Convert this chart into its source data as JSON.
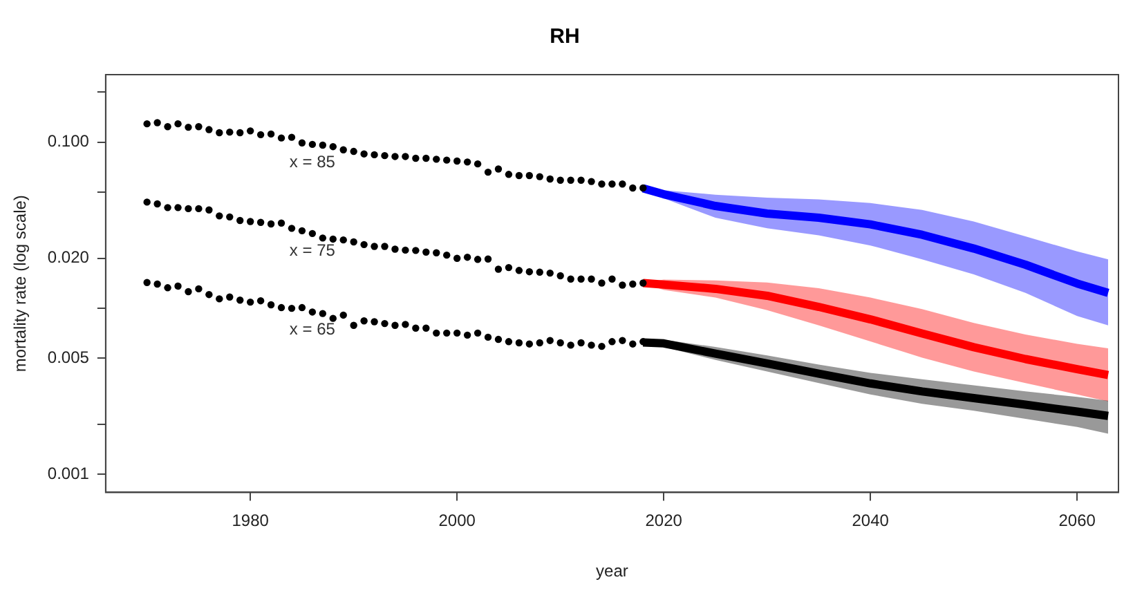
{
  "chart_data": {
    "type": "line",
    "title": "RH",
    "xlabel": "year",
    "ylabel": "mortality rate (log scale)",
    "log": "y",
    "grid": false,
    "legend": false,
    "xlim": [
      1966,
      2064
    ],
    "xticks": [
      1980,
      2000,
      2020,
      2040,
      2060
    ],
    "ylim": [
      0.00078,
      0.255
    ],
    "yticks": [
      {
        "value": 0.001,
        "label": "0.001"
      },
      {
        "value": 0.002,
        "label": null
      },
      {
        "value": 0.005,
        "label": "0.005"
      },
      {
        "value": 0.01,
        "label": null
      },
      {
        "value": 0.02,
        "label": "0.020"
      },
      {
        "value": 0.05,
        "label": null
      },
      {
        "value": 0.1,
        "label": "0.100"
      },
      {
        "value": 0.2,
        "label": null
      }
    ],
    "series": [
      {
        "type": "scatter",
        "name": "x = 85",
        "marker": "circle",
        "color": "#000000",
        "x": [
          1970,
          1971,
          1972,
          1973,
          1974,
          1975,
          1976,
          1977,
          1978,
          1979,
          1980,
          1981,
          1982,
          1983,
          1984,
          1985,
          1986,
          1987,
          1988,
          1989,
          1990,
          1991,
          1992,
          1993,
          1994,
          1995,
          1996,
          1997,
          1998,
          1999,
          2000,
          2001,
          2002,
          2003,
          2004,
          2005,
          2006,
          2007,
          2008,
          2009,
          2010,
          2011,
          2012,
          2013,
          2014,
          2015,
          2016,
          2017,
          2018
        ],
        "values": [
          0.129,
          0.131,
          0.124,
          0.129,
          0.123,
          0.124,
          0.119,
          0.114,
          0.115,
          0.114,
          0.117,
          0.111,
          0.112,
          0.106,
          0.107,
          0.099,
          0.097,
          0.096,
          0.094,
          0.09,
          0.088,
          0.085,
          0.084,
          0.083,
          0.082,
          0.082,
          0.08,
          0.08,
          0.079,
          0.078,
          0.077,
          0.076,
          0.074,
          0.066,
          0.069,
          0.064,
          0.063,
          0.063,
          0.062,
          0.06,
          0.059,
          0.059,
          0.059,
          0.058,
          0.056,
          0.056,
          0.056,
          0.053,
          0.053
        ]
      },
      {
        "type": "scatter",
        "name": "x = 75",
        "marker": "circle",
        "color": "#000000",
        "x": [
          1970,
          1971,
          1972,
          1973,
          1974,
          1975,
          1976,
          1977,
          1978,
          1979,
          1980,
          1981,
          1982,
          1983,
          1984,
          1985,
          1986,
          1987,
          1988,
          1989,
          1990,
          1991,
          1992,
          1993,
          1994,
          1995,
          1996,
          1997,
          1998,
          1999,
          2000,
          2001,
          2002,
          2003,
          2004,
          2005,
          2006,
          2007,
          2008,
          2009,
          2010,
          2011,
          2012,
          2013,
          2014,
          2015,
          2016,
          2017,
          2018
        ],
        "values": [
          0.0436,
          0.0425,
          0.0404,
          0.0404,
          0.0398,
          0.0398,
          0.0391,
          0.036,
          0.0355,
          0.0338,
          0.0333,
          0.0329,
          0.0322,
          0.0326,
          0.0303,
          0.0293,
          0.0282,
          0.0265,
          0.0261,
          0.0258,
          0.0251,
          0.0242,
          0.0236,
          0.0236,
          0.0227,
          0.0224,
          0.0223,
          0.0218,
          0.0216,
          0.0209,
          0.02,
          0.0203,
          0.0197,
          0.0198,
          0.0172,
          0.0176,
          0.0169,
          0.0166,
          0.0165,
          0.0163,
          0.0157,
          0.015,
          0.015,
          0.015,
          0.0142,
          0.015,
          0.0138,
          0.014,
          0.0142
        ]
      },
      {
        "type": "scatter",
        "name": "x = 65",
        "marker": "circle",
        "color": "#000000",
        "x": [
          1970,
          1971,
          1972,
          1973,
          1974,
          1975,
          1976,
          1977,
          1978,
          1979,
          1980,
          1981,
          1982,
          1983,
          1984,
          1985,
          1986,
          1987,
          1988,
          1989,
          1990,
          1991,
          1992,
          1993,
          1994,
          1995,
          1996,
          1997,
          1998,
          1999,
          2000,
          2001,
          2002,
          2003,
          2004,
          2005,
          2006,
          2007,
          2008,
          2009,
          2010,
          2011,
          2012,
          2013,
          2014,
          2015,
          2016,
          2017,
          2018
        ],
        "values": [
          0.0143,
          0.014,
          0.0133,
          0.0136,
          0.0126,
          0.0131,
          0.0121,
          0.0114,
          0.0117,
          0.0112,
          0.0109,
          0.0111,
          0.0105,
          0.0101,
          0.01,
          0.0101,
          0.0095,
          0.0093,
          0.0087,
          0.0091,
          0.0079,
          0.0084,
          0.0083,
          0.0081,
          0.0079,
          0.008,
          0.0076,
          0.0076,
          0.0071,
          0.0071,
          0.0071,
          0.0069,
          0.0071,
          0.0067,
          0.0065,
          0.0063,
          0.0062,
          0.0061,
          0.0062,
          0.0064,
          0.0062,
          0.006,
          0.0062,
          0.006,
          0.0059,
          0.0063,
          0.0064,
          0.0061,
          0.0063
        ]
      },
      {
        "color": "#0000ff",
        "x": [
          2018,
          2020,
          2025,
          2030,
          2035,
          2040,
          2045,
          2050,
          2055,
          2060,
          2063
        ],
        "values": [
          0.0528,
          0.0486,
          0.0413,
          0.0372,
          0.0351,
          0.032,
          0.0277,
          0.0229,
          0.0183,
          0.0141,
          0.0124
        ],
        "lower": [
          0.0528,
          0.0459,
          0.0351,
          0.0303,
          0.0275,
          0.0239,
          0.0197,
          0.016,
          0.0124,
          0.00898,
          0.0079
        ],
        "upper": [
          0.0528,
          0.0514,
          0.0483,
          0.0464,
          0.0453,
          0.043,
          0.0391,
          0.0333,
          0.0271,
          0.022,
          0.0197
        ]
      },
      {
        "color": "#ff0000",
        "x": [
          2018,
          2020,
          2025,
          2030,
          2035,
          2040,
          2045,
          2050,
          2055,
          2060,
          2063
        ],
        "values": [
          0.0142,
          0.0139,
          0.0131,
          0.0119,
          0.0102,
          0.00858,
          0.00706,
          0.00583,
          0.00495,
          0.0043,
          0.00397
        ],
        "lower": [
          0.0142,
          0.0129,
          0.0116,
          0.00976,
          0.0079,
          0.00632,
          0.00505,
          0.00417,
          0.00355,
          0.00303,
          0.00275
        ],
        "upper": [
          0.0142,
          0.0149,
          0.0147,
          0.0143,
          0.0132,
          0.0116,
          0.00988,
          0.00816,
          0.00695,
          0.00611,
          0.00574
        ]
      },
      {
        "color": "#000000",
        "x": [
          2018,
          2020,
          2025,
          2030,
          2035,
          2040,
          2045,
          2050,
          2055,
          2060,
          2063
        ],
        "values": [
          0.00623,
          0.00615,
          0.00534,
          0.00466,
          0.00404,
          0.00353,
          0.00316,
          0.00288,
          0.00263,
          0.00239,
          0.00225
        ],
        "lower": [
          0.00623,
          0.00585,
          0.00489,
          0.00417,
          0.00355,
          0.00303,
          0.00266,
          0.00242,
          0.00216,
          0.00193,
          0.00176
        ],
        "upper": [
          0.00623,
          0.00648,
          0.00585,
          0.00521,
          0.00459,
          0.00409,
          0.00374,
          0.00344,
          0.00316,
          0.00293,
          0.00278
        ]
      }
    ]
  }
}
